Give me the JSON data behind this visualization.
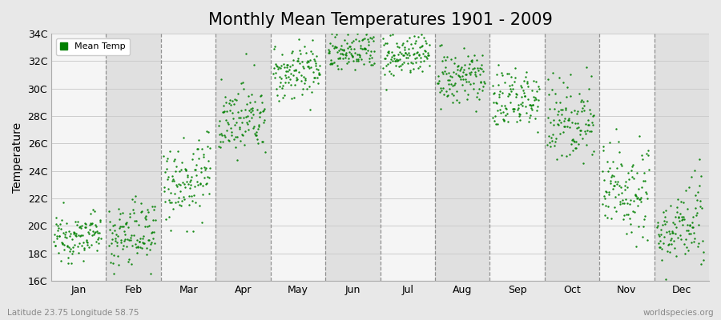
{
  "title": "Monthly Mean Temperatures 1901 - 2009",
  "ylabel": "Temperature",
  "subtitle": "Latitude 23.75 Longitude 58.75",
  "watermark": "worldspecies.org",
  "ylim": [
    16,
    34
  ],
  "yticks": [
    16,
    18,
    20,
    22,
    24,
    26,
    28,
    30,
    32,
    34
  ],
  "ytick_labels": [
    "16C",
    "18C",
    "20C",
    "22C",
    "24C",
    "26C",
    "28C",
    "30C",
    "32C",
    "34C"
  ],
  "months": [
    "Jan",
    "Feb",
    "Mar",
    "Apr",
    "May",
    "Jun",
    "Jul",
    "Aug",
    "Sep",
    "Oct",
    "Nov",
    "Dec"
  ],
  "dot_color": "#008000",
  "background_color": "#e8e8e8",
  "plot_bg_color": "#f5f5f5",
  "alt_band_color": "#e0e0e0",
  "title_fontsize": 15,
  "legend_label": "Mean Temp",
  "mean_temps": [
    19.0,
    19.2,
    23.2,
    27.5,
    31.0,
    32.5,
    32.2,
    30.5,
    29.0,
    27.5,
    22.5,
    19.5
  ],
  "temp_spread": [
    0.8,
    1.2,
    1.5,
    1.2,
    1.0,
    0.8,
    0.8,
    1.0,
    1.2,
    1.5,
    1.8,
    1.5
  ],
  "warming_trend": [
    0.005,
    0.005,
    0.005,
    0.005,
    0.005,
    0.005,
    0.005,
    0.005,
    0.005,
    0.005,
    0.005,
    0.005
  ],
  "n_years": 109,
  "start_year": 1901
}
